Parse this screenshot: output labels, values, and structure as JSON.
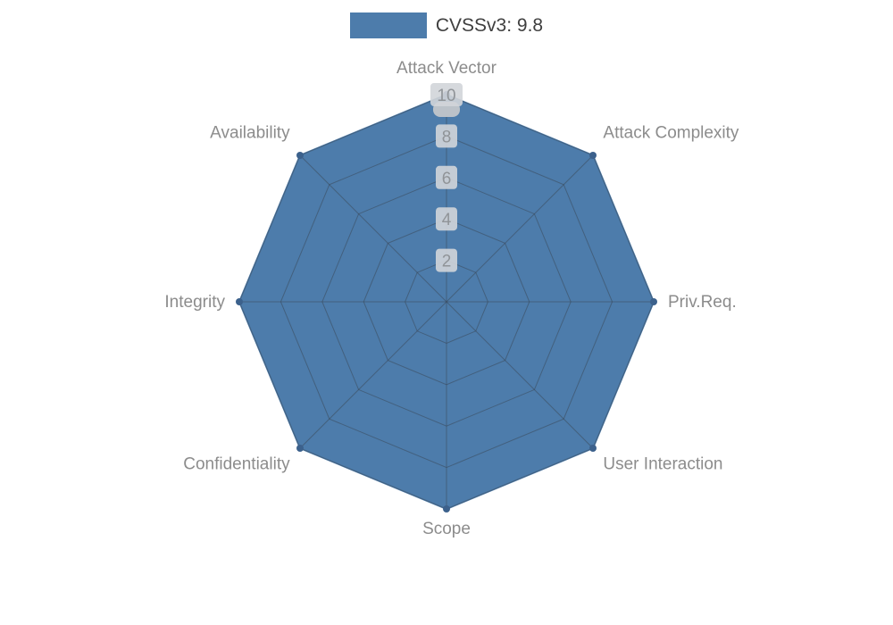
{
  "legend": {
    "label": "CVSSv3: 9.8"
  },
  "chart_data": {
    "type": "radar",
    "title": "CVSSv3: 9.8",
    "categories": [
      "Attack Vector",
      "Attack Complexity",
      "Priv.Req.",
      "User Interaction",
      "Scope",
      "Confidentiality",
      "Integrity",
      "Availability"
    ],
    "series": [
      {
        "name": "CVSSv3: 9.8",
        "values": [
          10,
          10,
          10,
          10,
          10,
          10,
          10,
          10
        ]
      }
    ],
    "ticks": [
      2,
      4,
      6,
      8,
      10
    ],
    "max": 10,
    "axis_range": [
      0,
      10
    ],
    "grid": true,
    "legend_position": "top",
    "fill_color": "#4d7cab",
    "point_color": "#3c618c",
    "grid_color": "rgba(58,72,90,0.55)",
    "grid_bg_color": "#e3e3e3",
    "label_color": "#8c8c8c",
    "tick_text_color": "#909498",
    "tick_box_color": "#d2d5d9",
    "marker_color": "#c2c6ca"
  }
}
